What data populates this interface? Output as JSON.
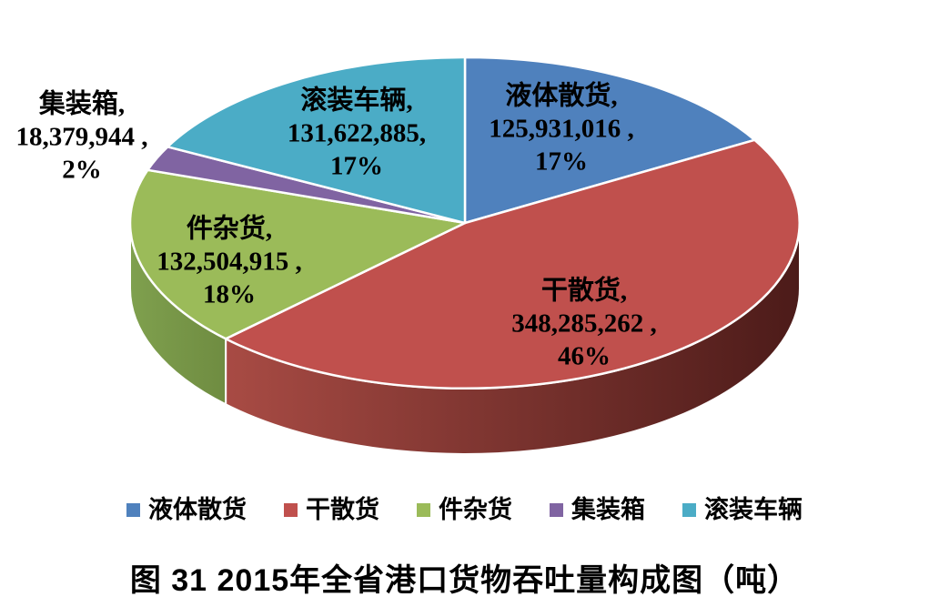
{
  "chart_data": {
    "type": "pie",
    "style": "3d-pie",
    "title": "图 31  2015年全省港口货物吞吐量构成图（吨）",
    "unit": "吨",
    "legend_position": "bottom",
    "grid": false,
    "categories": [
      "液体散货",
      "干散货",
      "件杂货",
      "集装箱",
      "滚装车辆"
    ],
    "values": [
      125931016,
      348285262,
      132504915,
      18379944,
      131622885
    ],
    "percents": [
      "17%",
      "46%",
      "18%",
      "2%",
      "17%"
    ],
    "slices": [
      {
        "name": "liquid-bulk-cargo",
        "label": "液体散货",
        "value": 125931016,
        "percent": "17%",
        "color": "#4F81BD",
        "label_lines": [
          "液体散货,",
          "125,931,016 ,",
          "17%"
        ]
      },
      {
        "name": "dry-bulk-cargo",
        "label": "干散货",
        "value": 348285262,
        "percent": "46%",
        "color": "#C0504D",
        "side_gradient": [
          "#A84B44",
          "#4C1B19"
        ],
        "label_lines": [
          "干散货,",
          "348,285,262 ,",
          "46%"
        ]
      },
      {
        "name": "general-cargo",
        "label": "件杂货",
        "value": 132504915,
        "percent": "18%",
        "color": "#9BBB59",
        "side_gradient": [
          "#7FA04E",
          "#6F8C41"
        ],
        "label_lines": [
          "件杂货,",
          "132,504,915 ,",
          "18%"
        ]
      },
      {
        "name": "containers",
        "label": "集装箱",
        "value": 18379944,
        "percent": "2%",
        "color": "#8064A2",
        "label_lines": [
          "集装箱,",
          "18,379,944 ,",
          "2%"
        ]
      },
      {
        "name": "roro-vehicles",
        "label": "滚装车辆",
        "value": 131622885,
        "percent": "17%",
        "color": "#4BACC6",
        "label_lines": [
          "滚装车辆,",
          "131,622,885,",
          "17%"
        ]
      }
    ]
  }
}
